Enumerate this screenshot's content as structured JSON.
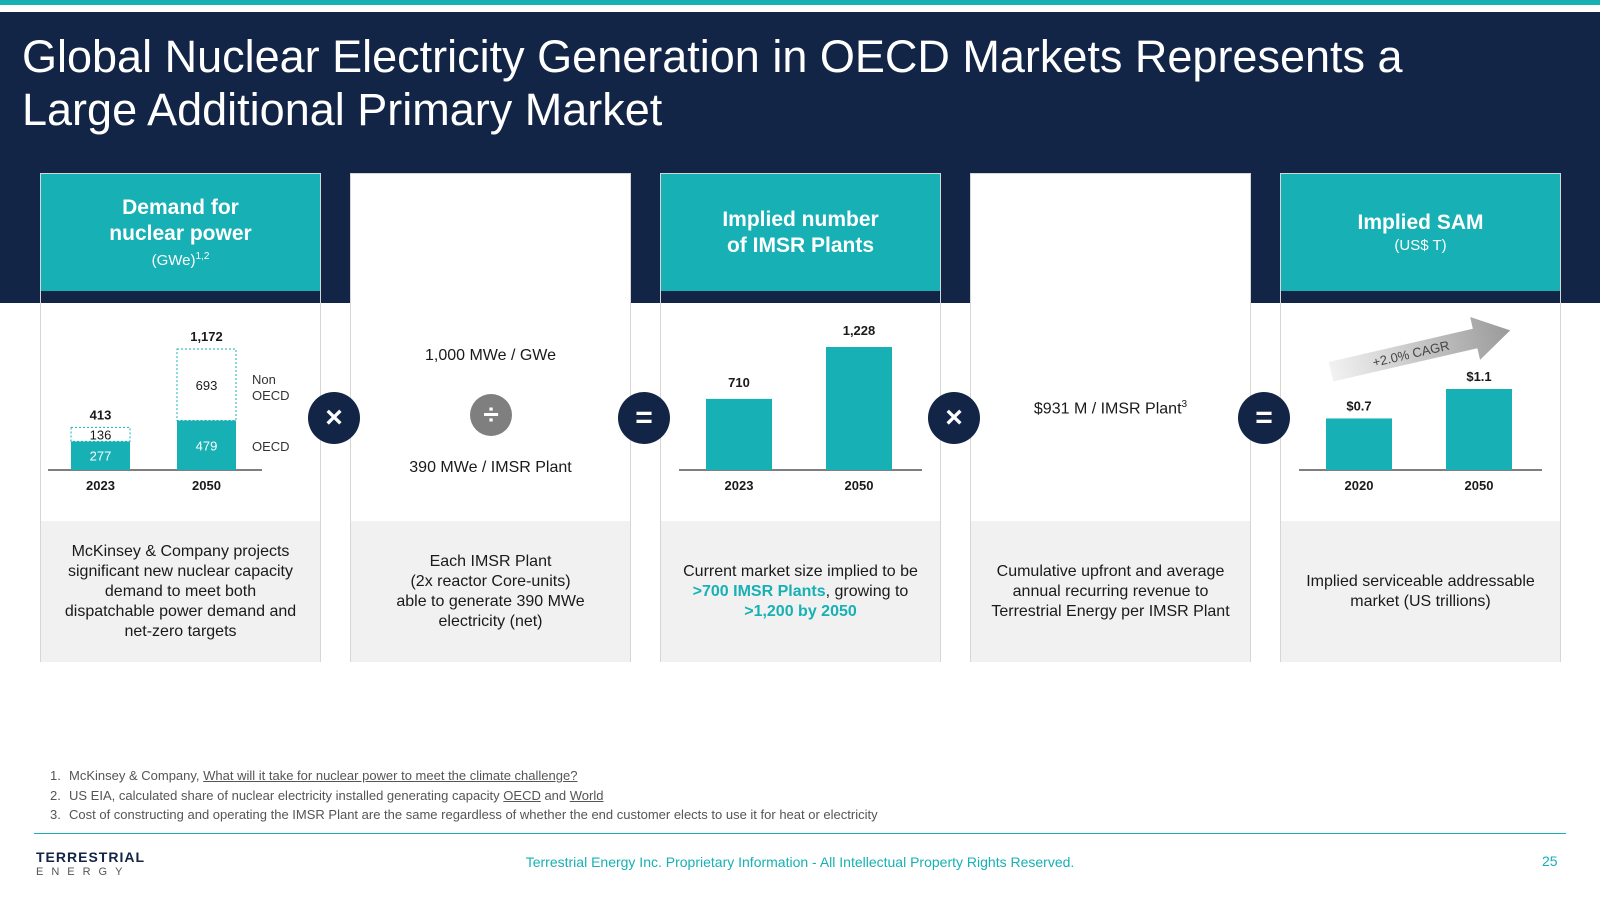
{
  "title": "Global Nuclear Electricity Generation in OECD Markets Represents a Large Additional Primary Market",
  "cards": [
    {
      "heading": "Demand for\nnuclear power",
      "sub": "(GWe)",
      "sub_sup": "1,2",
      "description": "McKinsey & Company projects significant new nuclear capacity demand to meet both dispatchable power demand and net-zero targets"
    },
    {
      "line1": "1,000 MWe / GWe",
      "operator": "÷",
      "line2": "390 MWe / IMSR Plant",
      "description": "Each IMSR Plant\n(2x reactor Core-units)\nable to generate 390 MWe\nelectricity (net)"
    },
    {
      "heading": "Implied number\nof IMSR Plants",
      "description_parts": [
        "Current market size implied to be ",
        ">700 IMSR Plants",
        ", growing to ",
        ">1,200 by 2050"
      ]
    },
    {
      "line1": "$931 M / IMSR Plant",
      "line1_sup": "3",
      "description": "Cumulative upfront and average annual recurring revenue to Terrestrial Energy per IMSR Plant"
    },
    {
      "heading": "Implied SAM",
      "sub": "(US$ T)",
      "description": "Implied serviceable addressable market (US trillions)"
    }
  ],
  "operators": [
    "×",
    "=",
    "×",
    "="
  ],
  "chart_data": [
    {
      "type": "bar",
      "stacked": true,
      "categories": [
        "2023",
        "2050"
      ],
      "series": [
        {
          "name": "OECD",
          "values": [
            277,
            479
          ]
        },
        {
          "name": "Non OECD",
          "values": [
            136,
            693
          ]
        }
      ],
      "totals": [
        "413",
        "1,172"
      ],
      "value_labels": {
        "OECD": [
          "277",
          "479"
        ],
        "Non OECD": [
          "136",
          "693"
        ]
      },
      "legend_labels": [
        "Non\nOECD",
        "OECD"
      ],
      "colors": {
        "OECD": "#16b0b5",
        "Non OECD": "#ffffff"
      }
    },
    {
      "type": "bar",
      "categories": [
        "2023",
        "2050"
      ],
      "values": [
        710,
        1228
      ],
      "labels": [
        "710",
        "1,228"
      ],
      "color": "#16b0b5"
    },
    {
      "type": "bar",
      "categories": [
        "2020",
        "2050"
      ],
      "values": [
        0.7,
        1.1
      ],
      "labels": [
        "$0.7",
        "$1.1"
      ],
      "annotation": "+2.0% CAGR",
      "color": "#16b0b5"
    }
  ],
  "footnotes": [
    {
      "num": "1.",
      "text": "McKinsey & Company, ",
      "link": "What will it take for nuclear power to meet the climate challenge?"
    },
    {
      "num": "2.",
      "text": "US EIA, calculated share of nuclear electricity installed generating capacity ",
      "link": "OECD",
      "and": " and ",
      "link2": "World"
    },
    {
      "num": "3.",
      "text": "Cost of constructing and operating the IMSR Plant are the same regardless of whether the end customer elects to use it for heat or electricity"
    }
  ],
  "footer": {
    "logo_line1": "TERRESTRIAL",
    "logo_line2": "ENERGY",
    "center": "Terrestrial Energy Inc. Proprietary Information - All Intellectual Property Rights Reserved.",
    "page": "25"
  }
}
